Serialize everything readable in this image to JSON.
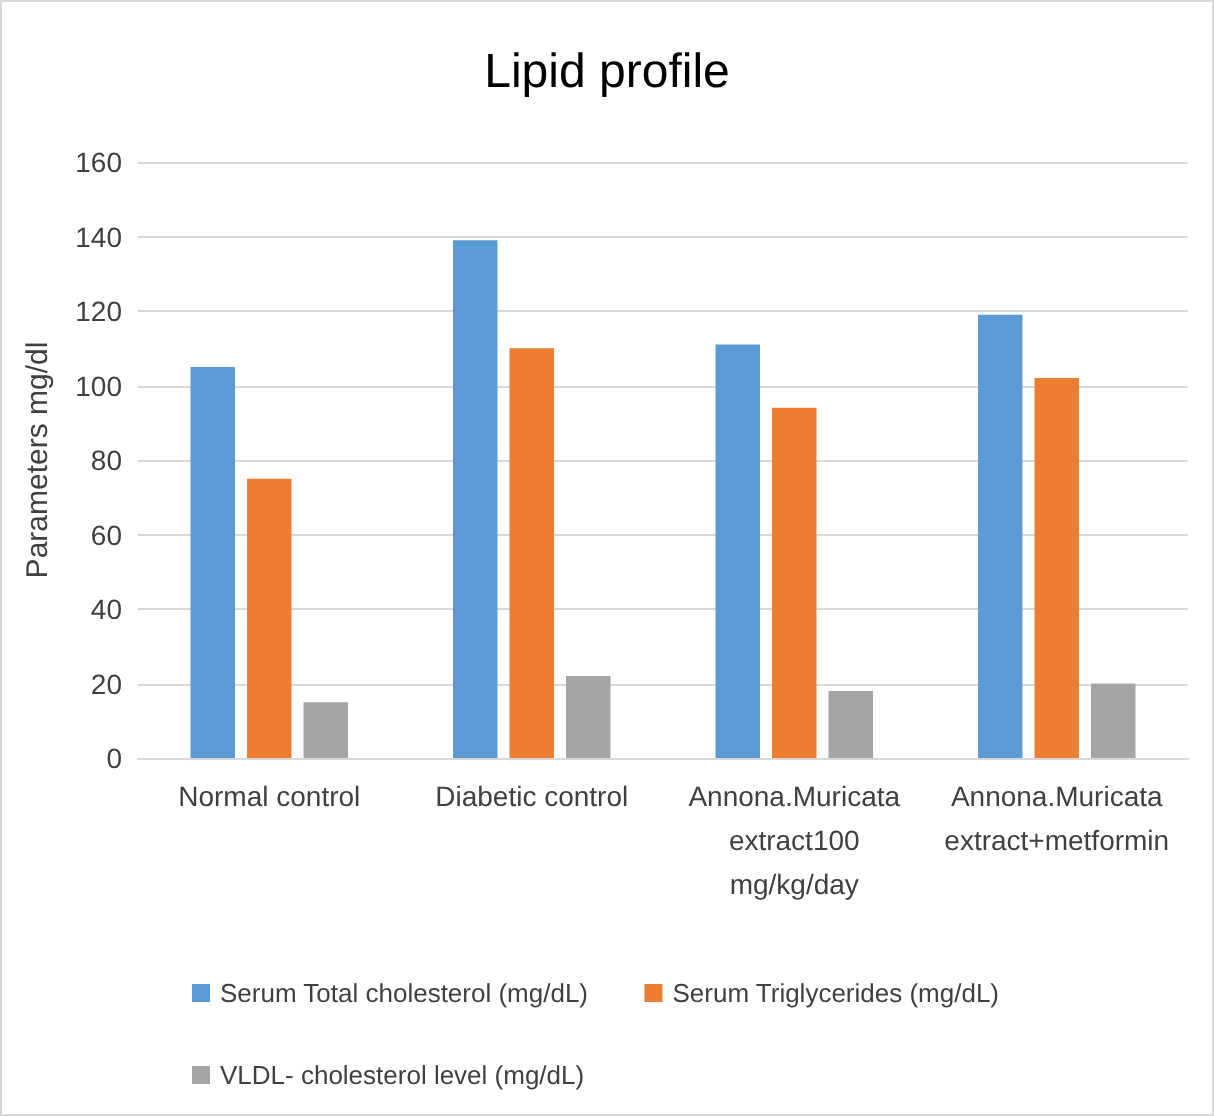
{
  "chart_data": {
    "type": "bar",
    "title": "Lipid profile",
    "ylabel": "Parameters mg/dl",
    "categories": [
      "Normal control",
      "Diabetic control",
      "Annona.Muricata\nextract100\nmg/kg/day",
      "Annona.Muricata\nextract+metformin"
    ],
    "series": [
      {
        "name": "Serum Total cholesterol (mg/dL)",
        "color": "#5b9bd5",
        "values": [
          105,
          139,
          111,
          119
        ]
      },
      {
        "name": "Serum Triglycerides (mg/dL)",
        "color": "#ed7d31",
        "values": [
          75,
          110,
          94,
          102
        ]
      },
      {
        "name": "VLDL- cholesterol level (mg/dL)",
        "color": "#a5a5a5",
        "values": [
          15,
          22,
          18,
          20
        ]
      }
    ],
    "ylim": [
      0,
      160
    ],
    "yticks": [
      0,
      20,
      40,
      60,
      80,
      100,
      120,
      140,
      160
    ],
    "grid": "y",
    "legend": "bottom"
  }
}
